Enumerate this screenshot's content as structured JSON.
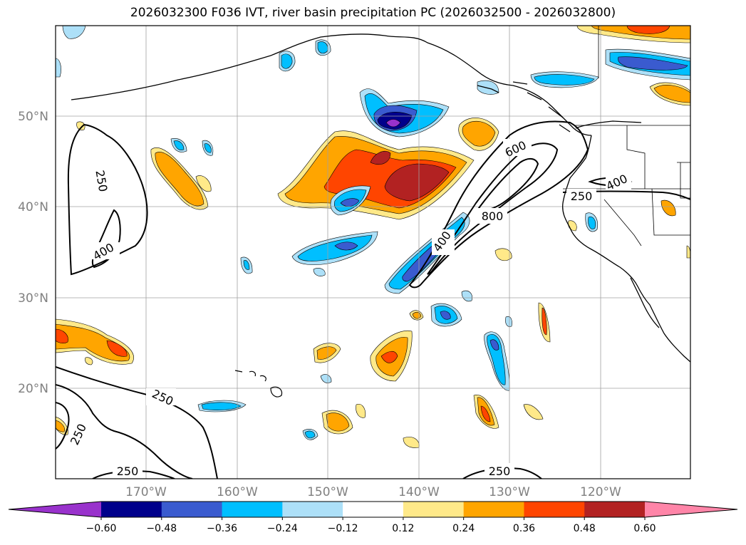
{
  "title": "2026032300 F036 IVT, river basin precipitation PC (2026032500 - 2026032800)",
  "lat_labels": [
    "50°N",
    "40°N",
    "30°N",
    "20°N"
  ],
  "lon_labels": [
    "170°W",
    "160°W",
    "150°W",
    "140°W",
    "130°W",
    "120°W"
  ],
  "contour_labels": [
    "250",
    "400",
    "250",
    "250",
    "250",
    "250",
    "600",
    "800",
    "400",
    "250",
    "400"
  ],
  "colorbar": {
    "ticks": [
      "−0.60",
      "−0.48",
      "−0.36",
      "−0.24",
      "−0.12",
      "0.12",
      "0.24",
      "0.36",
      "0.48",
      "0.60"
    ],
    "colors": [
      "#9932CC",
      "#00008B",
      "#3A5BCF",
      "#00BFFF",
      "#ADE0F8",
      "#FFFFFF",
      "#FFE989",
      "#FFA500",
      "#FF4500",
      "#B22222",
      "#FF85A8"
    ]
  }
}
